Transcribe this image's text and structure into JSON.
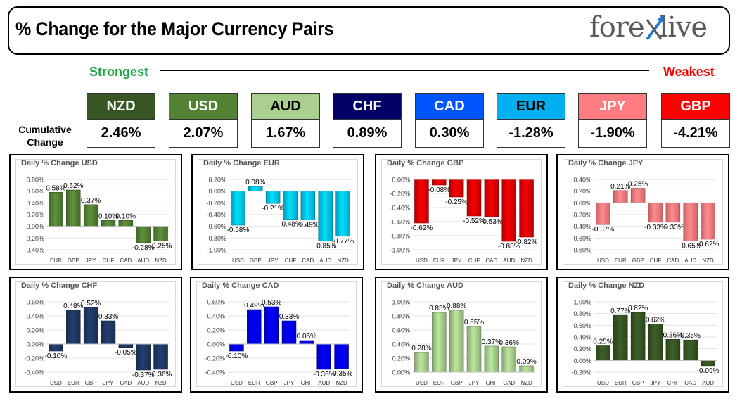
{
  "header": {
    "title": "% Change for the Major Currency Pairs",
    "logo_left": "fore",
    "logo_right": "live"
  },
  "scale": {
    "strongest": "Strongest",
    "weakest": "Weakest"
  },
  "cumulative_label_line1": "Cumulative",
  "cumulative_label_line2": "Change",
  "currencies": [
    {
      "code": "NZD",
      "value": "2.46%",
      "bg": "#375623",
      "fg": "#ffffff"
    },
    {
      "code": "USD",
      "value": "2.07%",
      "bg": "#548235",
      "fg": "#ffffff"
    },
    {
      "code": "AUD",
      "value": "1.67%",
      "bg": "#a9d08e",
      "fg": "#000000"
    },
    {
      "code": "CHF",
      "value": "0.89%",
      "bg": "#000066",
      "fg": "#ffffff"
    },
    {
      "code": "CAD",
      "value": "0.30%",
      "bg": "#0055ff",
      "fg": "#ffffff"
    },
    {
      "code": "EUR",
      "value": "-1.28%",
      "bg": "#00b0f0",
      "fg": "#000000"
    },
    {
      "code": "JPY",
      "value": "-1.90%",
      "bg": "#ff7c80",
      "fg": "#ffffff"
    },
    {
      "code": "GBP",
      "value": "-4.21%",
      "bg": "#ff0000",
      "fg": "#ffffff"
    }
  ],
  "chart_data": [
    {
      "type": "bar",
      "title": "Daily % Change USD",
      "color": "#548235",
      "categories": [
        "EUR",
        "GBP",
        "JPY",
        "CHF",
        "CAD",
        "AUD",
        "NZD"
      ],
      "values": [
        0.58,
        0.62,
        0.37,
        0.1,
        0.1,
        -0.28,
        -0.25
      ],
      "labels": [
        "0.58%",
        "0.62%",
        "0.37%",
        "0.10%",
        "0.10%",
        "-0.28%",
        "-0.25%"
      ],
      "ylim": [
        -0.4,
        0.8
      ],
      "ticks": [
        0.8,
        0.6,
        0.4,
        0.2,
        0.0,
        -0.2,
        -0.4
      ],
      "tick_labels": [
        "0.80%",
        "0.60%",
        "0.40%",
        "0.20%",
        "0.00%",
        "-0.20%",
        "-0.40%"
      ]
    },
    {
      "type": "bar",
      "title": "Daily % Change EUR",
      "color": "#00c8f0",
      "categories": [
        "USD",
        "GBP",
        "JPY",
        "CHF",
        "CAD",
        "AUD",
        "NZD"
      ],
      "values": [
        -0.58,
        0.08,
        -0.21,
        -0.48,
        -0.49,
        -0.85,
        -0.77
      ],
      "labels": [
        "-0.58%",
        "0.08%",
        "-0.21%",
        "-0.48%",
        "-0.49%",
        "-0.85%",
        "-0.77%"
      ],
      "ylim": [
        -1.0,
        0.2
      ],
      "ticks": [
        0.2,
        0.0,
        -0.2,
        -0.4,
        -0.6,
        -0.8,
        -1.0
      ],
      "tick_labels": [
        "0.20%",
        "0.00%",
        "-0.20%",
        "-0.40%",
        "-0.60%",
        "-0.80%",
        "-1.00%"
      ]
    },
    {
      "type": "bar",
      "title": "Daily % Change GBP",
      "color": "#e00000",
      "categories": [
        "USD",
        "EUR",
        "JPY",
        "CHF",
        "CAD",
        "AUD",
        "NZD"
      ],
      "values": [
        -0.62,
        -0.08,
        -0.25,
        -0.52,
        -0.53,
        -0.88,
        -0.82
      ],
      "labels": [
        "-0.62%",
        "-0.08%",
        "-0.25%",
        "-0.52%",
        "-0.53%",
        "-0.88%",
        "-0.82%"
      ],
      "ylim": [
        -1.0,
        0.0
      ],
      "ticks": [
        0.0,
        -0.2,
        -0.4,
        -0.6,
        -0.8,
        -1.0
      ],
      "tick_labels": [
        "0.00%",
        "-0.20%",
        "-0.40%",
        "-0.60%",
        "-0.80%",
        "-1.00%"
      ]
    },
    {
      "type": "bar",
      "title": "Daily % Change JPY",
      "color": "#ff7c80",
      "categories": [
        "USD",
        "EUR",
        "GBP",
        "CHF",
        "CAD",
        "AUD",
        "NZD"
      ],
      "values": [
        -0.37,
        0.21,
        0.25,
        -0.33,
        -0.33,
        -0.65,
        -0.62
      ],
      "labels": [
        "-0.37%",
        "0.21%",
        "0.25%",
        "-0.33%",
        "-0.33%",
        "-0.65%",
        "-0.62%"
      ],
      "ylim": [
        -0.8,
        0.4
      ],
      "ticks": [
        0.4,
        0.2,
        0.0,
        -0.2,
        -0.4,
        -0.6,
        -0.8
      ],
      "tick_labels": [
        "0.40%",
        "0.20%",
        "0.00%",
        "-0.20%",
        "-0.40%",
        "-0.60%",
        "-0.80%"
      ]
    },
    {
      "type": "bar",
      "title": "Daily % Change CHF",
      "color": "#1f3864",
      "categories": [
        "USD",
        "EUR",
        "GBP",
        "JPY",
        "CAD",
        "AUD",
        "NZD"
      ],
      "values": [
        -0.1,
        0.48,
        0.52,
        0.33,
        -0.05,
        -0.37,
        -0.36
      ],
      "labels": [
        "-0.10%",
        "0.48%",
        "0.52%",
        "0.33%",
        "-0.05%",
        "-0.37%",
        "-0.36%"
      ],
      "ylim": [
        -0.4,
        0.6
      ],
      "ticks": [
        0.6,
        0.4,
        0.2,
        0.0,
        -0.2,
        -0.4
      ],
      "tick_labels": [
        "0.60%",
        "0.40%",
        "0.20%",
        "0.00%",
        "-0.20%",
        "-0.40%"
      ]
    },
    {
      "type": "bar",
      "title": "Daily % Change CAD",
      "color": "#0000ee",
      "categories": [
        "USD",
        "EUR",
        "GBP",
        "JPY",
        "CHF",
        "AUD",
        "NZD"
      ],
      "values": [
        -0.1,
        0.49,
        0.53,
        0.33,
        0.05,
        -0.36,
        -0.35
      ],
      "labels": [
        "-0.10%",
        "0.49%",
        "0.53%",
        "0.33%",
        "0.05%",
        "-0.36%",
        "-0.35%"
      ],
      "ylim": [
        -0.4,
        0.6
      ],
      "ticks": [
        0.6,
        0.4,
        0.2,
        0.0,
        -0.2,
        -0.4
      ],
      "tick_labels": [
        "0.60%",
        "0.40%",
        "0.20%",
        "0.00%",
        "-0.20%",
        "-0.40%"
      ]
    },
    {
      "type": "bar",
      "title": "Daily % Change AUD",
      "color": "#a9d08e",
      "categories": [
        "USD",
        "EUR",
        "GBP",
        "JPY",
        "CHF",
        "CAD",
        "NZD"
      ],
      "values": [
        0.28,
        0.85,
        0.88,
        0.65,
        0.37,
        0.36,
        0.09
      ],
      "labels": [
        "0.28%",
        "0.85%",
        "0.88%",
        "0.65%",
        "0.37%",
        "0.36%",
        "0.09%"
      ],
      "ylim": [
        0.0,
        1.0
      ],
      "ticks": [
        1.0,
        0.8,
        0.6,
        0.4,
        0.2,
        0.0
      ],
      "tick_labels": [
        "1.00%",
        "0.80%",
        "0.60%",
        "0.40%",
        "0.20%",
        "0.00%"
      ]
    },
    {
      "type": "bar",
      "title": "Daily % Change NZD",
      "color": "#375623",
      "categories": [
        "USD",
        "EUR",
        "GBP",
        "JPY",
        "CHF",
        "CAD",
        "AUD"
      ],
      "values": [
        0.25,
        0.77,
        0.82,
        0.62,
        0.36,
        0.35,
        -0.09
      ],
      "labels": [
        "0.25%",
        "0.77%",
        "0.82%",
        "0.62%",
        "0.36%",
        "0.35%",
        "-0.09%"
      ],
      "ylim": [
        -0.2,
        1.0
      ],
      "ticks": [
        1.0,
        0.8,
        0.6,
        0.4,
        0.2,
        0.0,
        -0.2
      ],
      "tick_labels": [
        "1.00%",
        "0.80%",
        "0.60%",
        "0.40%",
        "0.20%",
        "0.00%",
        "-0.20%"
      ]
    }
  ]
}
